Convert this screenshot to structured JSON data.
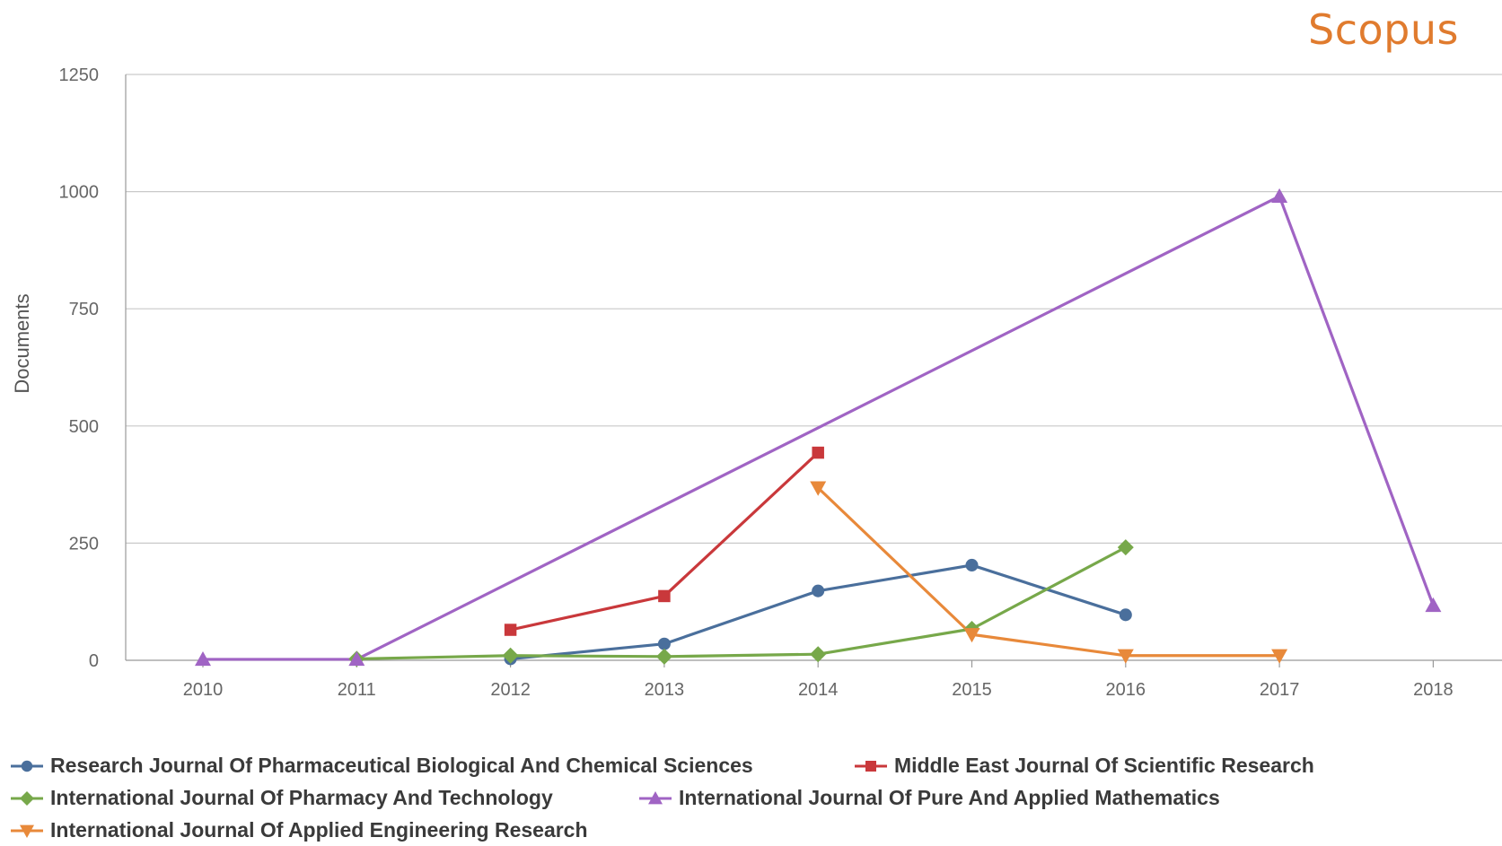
{
  "brand": {
    "text": "Scopus",
    "color": "#e07b2e"
  },
  "chart_data": {
    "type": "line",
    "title": "",
    "xlabel": "",
    "ylabel": "Documents",
    "x": [
      2010,
      2011,
      2012,
      2013,
      2014,
      2015,
      2016,
      2017,
      2018
    ],
    "ylim": [
      0,
      1250
    ],
    "yticks": [
      0,
      250,
      500,
      750,
      1000,
      1250
    ],
    "grid": "horizontal",
    "legend_placement": "bottom",
    "series": [
      {
        "name": "Research Journal Of Pharmaceutical Biological And Chemical Sciences",
        "color": "#4a6f9c",
        "marker": "circle",
        "points": [
          [
            2012,
            3
          ],
          [
            2013,
            35
          ],
          [
            2014,
            148
          ],
          [
            2015,
            203
          ],
          [
            2016,
            97
          ]
        ]
      },
      {
        "name": "Middle East Journal Of Scientific Research",
        "color": "#c9383b",
        "marker": "square",
        "points": [
          [
            2012,
            65
          ],
          [
            2013,
            137
          ],
          [
            2014,
            443
          ]
        ]
      },
      {
        "name": "International Journal Of Pharmacy And Technology",
        "color": "#77a84a",
        "marker": "diamond",
        "points": [
          [
            2011,
            3
          ],
          [
            2012,
            10
          ],
          [
            2013,
            8
          ],
          [
            2014,
            13
          ],
          [
            2015,
            67
          ],
          [
            2016,
            241
          ]
        ]
      },
      {
        "name": "International Journal Of Pure And Applied Mathematics",
        "color": "#a064c4",
        "marker": "triangle-up",
        "points": [
          [
            2010,
            2
          ],
          [
            2011,
            2
          ],
          [
            2017,
            990
          ],
          [
            2018,
            117
          ]
        ]
      },
      {
        "name": "International Journal Of Applied Engineering Research",
        "color": "#e8893a",
        "marker": "triangle-down",
        "points": [
          [
            2014,
            368
          ],
          [
            2015,
            55
          ],
          [
            2016,
            10
          ],
          [
            2017,
            10
          ]
        ]
      }
    ]
  }
}
